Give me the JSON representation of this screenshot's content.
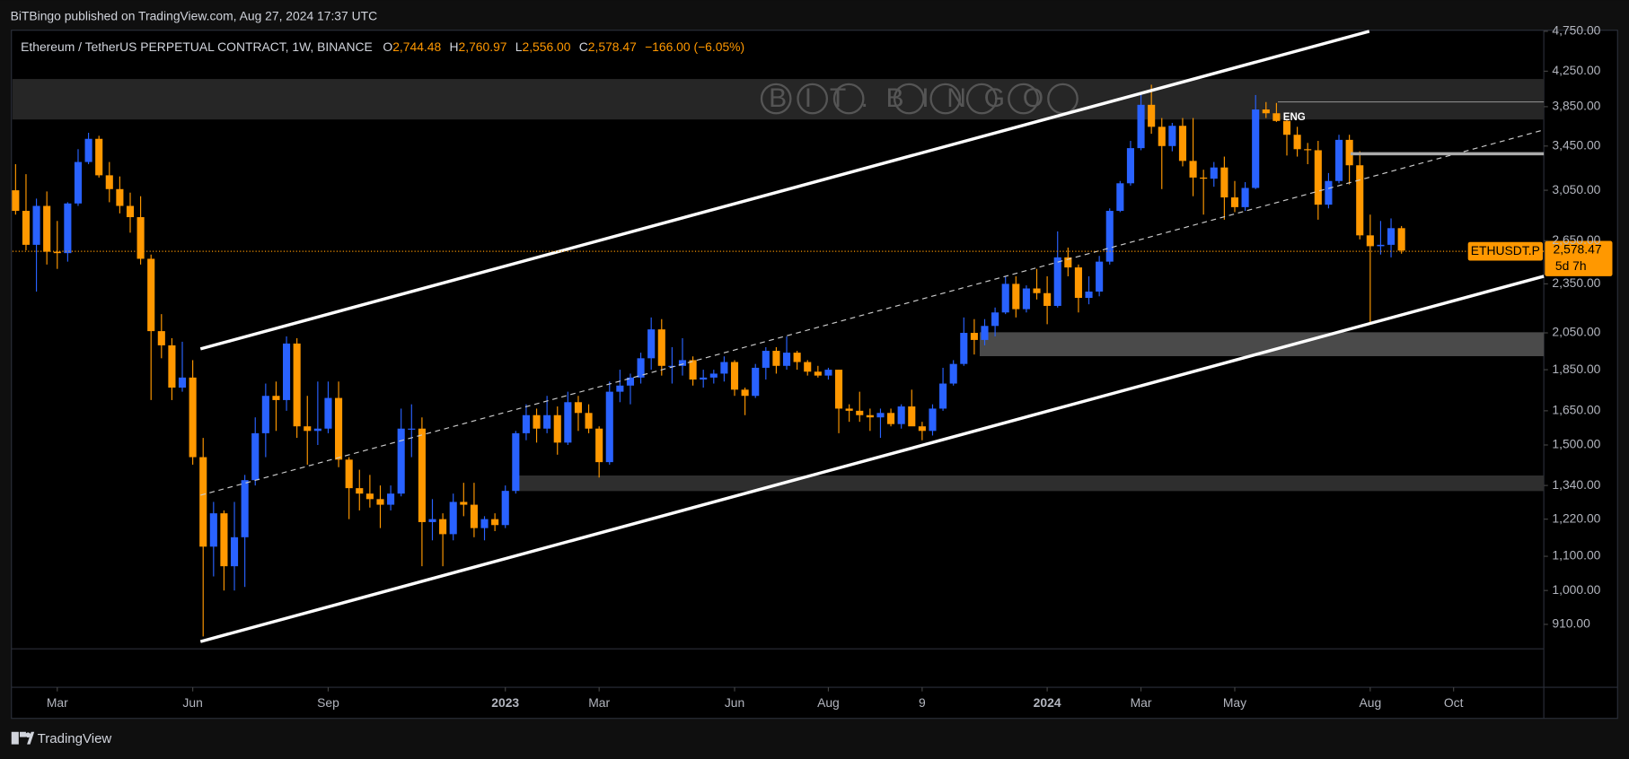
{
  "header": {
    "publisher": "BiTBingo published on TradingView.com, Aug 27, 2024 17:37 UTC",
    "brand": "TradingView"
  },
  "chart_data": {
    "type": "candlestick",
    "title": "Ethereum / TetherUS PERPETUAL CONTRACT, 1W, BINANCE",
    "legend": [
      {
        "key": "O",
        "text": "2,744.48"
      },
      {
        "key": "H",
        "text": "2,760.97"
      },
      {
        "key": "L",
        "text": "2,556.00"
      },
      {
        "key": "C",
        "text": "2,578.47"
      }
    ],
    "change": "−166.00 (−6.05%)",
    "watermark": "BIT.BINGO",
    "annotations": [
      "ENG"
    ],
    "price_label": {
      "symbol": "ETHUSDT.P",
      "price": "2,578.47",
      "countdown": "5d 7h"
    },
    "up_color": "#2962ff",
    "down_color": "#ff9800",
    "log_scale": true,
    "ylim": [
      850,
      4750
    ],
    "yticks": [
      {
        "value": 4750,
        "label": "4,750.00"
      },
      {
        "value": 4250,
        "label": "4,250.00"
      },
      {
        "value": 3850,
        "label": "3,850.00"
      },
      {
        "value": 3450,
        "label": "3,450.00"
      },
      {
        "value": 3050,
        "label": "3,050.00"
      },
      {
        "value": 2650,
        "label": "2,650.00"
      },
      {
        "value": 2350,
        "label": "2,350.00"
      },
      {
        "value": 2050,
        "label": "2,050.00"
      },
      {
        "value": 1850,
        "label": "1,850.00"
      },
      {
        "value": 1650,
        "label": "1,650.00"
      },
      {
        "value": 1500,
        "label": "1,500.00"
      },
      {
        "value": 1340,
        "label": "1,340.00"
      },
      {
        "value": 1220,
        "label": "1,220.00"
      },
      {
        "value": 1100,
        "label": "1,100.00"
      },
      {
        "value": 1000,
        "label": "1,000.00"
      },
      {
        "value": 910,
        "label": "910.00"
      }
    ],
    "xticks": [
      {
        "value": 4,
        "label": "Mar"
      },
      {
        "value": 17,
        "label": "Jun"
      },
      {
        "value": 30,
        "label": "Sep"
      },
      {
        "value": 47,
        "label": "2023"
      },
      {
        "value": 56,
        "label": "Mar"
      },
      {
        "value": 69,
        "label": "Jun"
      },
      {
        "value": 78,
        "label": "Aug"
      },
      {
        "value": 87,
        "label": "9"
      },
      {
        "value": 99,
        "label": "2024"
      },
      {
        "value": 108,
        "label": "Mar"
      },
      {
        "value": 117,
        "label": "May"
      },
      {
        "value": 130,
        "label": "Aug"
      },
      {
        "value": 138,
        "label": "Oct"
      }
    ],
    "ohlc": [
      [
        3050,
        3280,
        2850,
        2880
      ],
      [
        2880,
        3190,
        2580,
        2620
      ],
      [
        2620,
        2980,
        2300,
        2920
      ],
      [
        2920,
        3040,
        2480,
        2570
      ],
      [
        2570,
        2800,
        2450,
        2560
      ],
      [
        2560,
        2950,
        2500,
        2940
      ],
      [
        2940,
        3420,
        2920,
        3300
      ],
      [
        3300,
        3580,
        3280,
        3520
      ],
      [
        3520,
        3550,
        3160,
        3180
      ],
      [
        3180,
        3300,
        2950,
        3060
      ],
      [
        3060,
        3170,
        2860,
        2920
      ],
      [
        2920,
        3030,
        2710,
        2830
      ],
      [
        2830,
        3000,
        2480,
        2520
      ],
      [
        2520,
        2550,
        1700,
        2060
      ],
      [
        2060,
        2160,
        1910,
        1980
      ],
      [
        1980,
        2020,
        1700,
        1760
      ],
      [
        1760,
        2000,
        1740,
        1810
      ],
      [
        1810,
        1900,
        1420,
        1450
      ],
      [
        1450,
        1530,
        880,
        1130
      ],
      [
        1130,
        1280,
        1040,
        1240
      ],
      [
        1240,
        1250,
        1000,
        1070
      ],
      [
        1070,
        1280,
        1000,
        1160
      ],
      [
        1160,
        1380,
        1010,
        1360
      ],
      [
        1360,
        1620,
        1340,
        1550
      ],
      [
        1550,
        1780,
        1450,
        1720
      ],
      [
        1720,
        1790,
        1560,
        1700
      ],
      [
        1700,
        2030,
        1650,
        1990
      ],
      [
        1990,
        2020,
        1530,
        1580
      ],
      [
        1580,
        1720,
        1420,
        1560
      ],
      [
        1560,
        1790,
        1500,
        1570
      ],
      [
        1570,
        1790,
        1550,
        1710
      ],
      [
        1710,
        1790,
        1410,
        1440
      ],
      [
        1440,
        1450,
        1220,
        1330
      ],
      [
        1330,
        1400,
        1250,
        1310
      ],
      [
        1310,
        1380,
        1260,
        1290
      ],
      [
        1290,
        1340,
        1190,
        1270
      ],
      [
        1270,
        1340,
        1250,
        1310
      ],
      [
        1310,
        1660,
        1300,
        1570
      ],
      [
        1570,
        1680,
        1450,
        1570
      ],
      [
        1570,
        1620,
        1070,
        1210
      ],
      [
        1210,
        1290,
        1150,
        1220
      ],
      [
        1220,
        1240,
        1070,
        1170
      ],
      [
        1170,
        1310,
        1150,
        1280
      ],
      [
        1280,
        1350,
        1230,
        1270
      ],
      [
        1270,
        1350,
        1160,
        1190
      ],
      [
        1190,
        1230,
        1150,
        1220
      ],
      [
        1220,
        1240,
        1180,
        1200
      ],
      [
        1200,
        1340,
        1190,
        1320
      ],
      [
        1320,
        1560,
        1310,
        1550
      ],
      [
        1550,
        1680,
        1520,
        1630
      ],
      [
        1630,
        1660,
        1510,
        1570
      ],
      [
        1570,
        1720,
        1550,
        1630
      ],
      [
        1630,
        1670,
        1460,
        1510
      ],
      [
        1510,
        1740,
        1500,
        1690
      ],
      [
        1690,
        1720,
        1560,
        1640
      ],
      [
        1640,
        1680,
        1550,
        1570
      ],
      [
        1570,
        1580,
        1370,
        1430
      ],
      [
        1430,
        1790,
        1420,
        1740
      ],
      [
        1740,
        1850,
        1690,
        1770
      ],
      [
        1770,
        1830,
        1680,
        1810
      ],
      [
        1810,
        1940,
        1780,
        1910
      ],
      [
        1910,
        2140,
        1850,
        2070
      ],
      [
        2070,
        2130,
        1820,
        1870
      ],
      [
        1870,
        1970,
        1780,
        1870
      ],
      [
        1870,
        2020,
        1820,
        1900
      ],
      [
        1900,
        1920,
        1770,
        1800
      ],
      [
        1800,
        1850,
        1760,
        1810
      ],
      [
        1810,
        1850,
        1780,
        1830
      ],
      [
        1830,
        1920,
        1790,
        1890
      ],
      [
        1890,
        1900,
        1720,
        1750
      ],
      [
        1750,
        1760,
        1630,
        1720
      ],
      [
        1720,
        1880,
        1710,
        1860
      ],
      [
        1860,
        1970,
        1800,
        1950
      ],
      [
        1950,
        1970,
        1830,
        1870
      ],
      [
        1870,
        2030,
        1850,
        1940
      ],
      [
        1940,
        1950,
        1850,
        1890
      ],
      [
        1890,
        1900,
        1820,
        1840
      ],
      [
        1840,
        1870,
        1810,
        1820
      ],
      [
        1820,
        1860,
        1800,
        1850
      ],
      [
        1850,
        1850,
        1550,
        1660
      ],
      [
        1660,
        1680,
        1600,
        1650
      ],
      [
        1650,
        1740,
        1600,
        1630
      ],
      [
        1630,
        1660,
        1560,
        1620
      ],
      [
        1620,
        1660,
        1530,
        1640
      ],
      [
        1640,
        1660,
        1580,
        1590
      ],
      [
        1590,
        1680,
        1570,
        1670
      ],
      [
        1670,
        1750,
        1610,
        1580
      ],
      [
        1580,
        1600,
        1520,
        1560
      ],
      [
        1560,
        1680,
        1540,
        1660
      ],
      [
        1660,
        1860,
        1650,
        1780
      ],
      [
        1780,
        1900,
        1770,
        1880
      ],
      [
        1880,
        2140,
        1870,
        2050
      ],
      [
        2050,
        2130,
        1930,
        2010
      ],
      [
        2010,
        2130,
        1980,
        2090
      ],
      [
        2090,
        2200,
        2030,
        2170
      ],
      [
        2170,
        2400,
        2160,
        2350
      ],
      [
        2350,
        2400,
        2140,
        2190
      ],
      [
        2190,
        2340,
        2170,
        2320
      ],
      [
        2320,
        2450,
        2250,
        2290
      ],
      [
        2290,
        2400,
        2100,
        2210
      ],
      [
        2210,
        2720,
        2200,
        2530
      ],
      [
        2530,
        2600,
        2400,
        2460
      ],
      [
        2460,
        2480,
        2170,
        2260
      ],
      [
        2260,
        2400,
        2220,
        2300
      ],
      [
        2300,
        2540,
        2270,
        2500
      ],
      [
        2500,
        2900,
        2480,
        2880
      ],
      [
        2880,
        3130,
        2870,
        3110
      ],
      [
        3110,
        3500,
        3090,
        3430
      ],
      [
        3430,
        4000,
        3410,
        3870
      ],
      [
        3870,
        4093,
        3570,
        3640
      ],
      [
        3640,
        3730,
        3060,
        3450
      ],
      [
        3450,
        3680,
        3400,
        3650
      ],
      [
        3650,
        3730,
        3260,
        3310
      ],
      [
        3310,
        3730,
        3000,
        3160
      ],
      [
        3160,
        3230,
        2850,
        3150
      ],
      [
        3150,
        3300,
        3080,
        3250
      ],
      [
        3250,
        3350,
        2810,
        2990
      ],
      [
        2990,
        3130,
        2870,
        2910
      ],
      [
        2910,
        3120,
        2880,
        3070
      ],
      [
        3070,
        3977,
        3060,
        3820
      ],
      [
        3820,
        3900,
        3730,
        3780
      ],
      [
        3780,
        3890,
        3690,
        3700
      ],
      [
        3700,
        3720,
        3360,
        3560
      ],
      [
        3560,
        3640,
        3350,
        3420
      ],
      [
        3420,
        3480,
        3280,
        3410
      ],
      [
        3410,
        3500,
        2810,
        2930
      ],
      [
        2930,
        3200,
        2900,
        3130
      ],
      [
        3130,
        3560,
        3110,
        3510
      ],
      [
        3510,
        3560,
        3100,
        3270
      ],
      [
        3270,
        3400,
        2660,
        2690
      ],
      [
        2690,
        2850,
        2111,
        2610
      ],
      [
        2610,
        2800,
        2550,
        2620
      ],
      [
        2620,
        2820,
        2530,
        2744.48
      ],
      [
        2744.48,
        2760.97,
        2556,
        2578.47
      ]
    ]
  }
}
